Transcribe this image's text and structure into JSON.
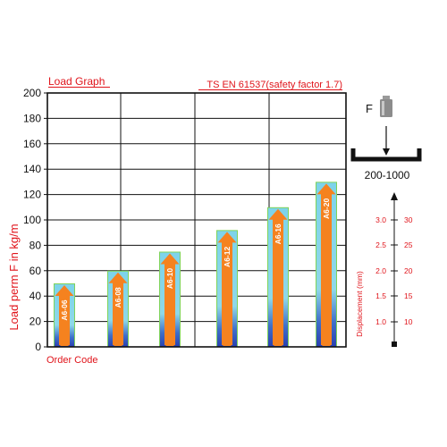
{
  "header": {
    "left_title": "Load Graph",
    "right_title": "TS EN 61537(safety factor 1.7)"
  },
  "colors": {
    "accent_red": "#e0141b",
    "bar_cyan": "#7dd3ea",
    "bar_green": "#7fd35a",
    "bar_blue": "#2a3fb0",
    "arrow_orange": "#f5821f"
  },
  "chart_data": {
    "type": "bar",
    "categories": [
      "A6-06",
      "A6-08",
      "A6-10",
      "A6-12",
      "A6-16",
      "A6-20"
    ],
    "values": [
      50,
      60,
      75,
      92,
      110,
      130
    ],
    "xlabel": "Order Code",
    "ylabel": "Load perm F in kg/m",
    "ylim": [
      0,
      200
    ],
    "y_ticks": [
      "0",
      "20",
      "40",
      "60",
      "80",
      "100",
      "120",
      "140",
      "160",
      "180",
      "200"
    ],
    "grid": true
  },
  "legend": {
    "force_label": "F",
    "weight_icon": "weight-icon",
    "span_label": "200-1000",
    "displacement_label": "Displacement (mm)",
    "displacement_left": [
      "3.0",
      "2.5",
      "2.0",
      "1.5",
      "1.0"
    ],
    "displacement_right": [
      "30",
      "25",
      "20",
      "15",
      "10"
    ]
  }
}
